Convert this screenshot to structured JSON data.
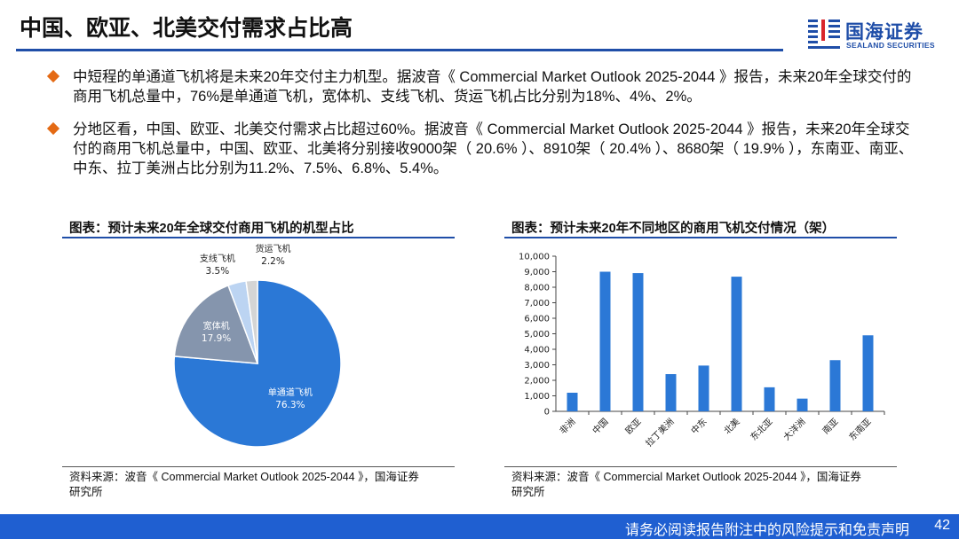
{
  "header": {
    "title": "中国、欧亚、北美交付需求占比高",
    "logo_cn": "国海证券",
    "logo_en": "SEALAND SECURITIES"
  },
  "bullets": [
    "中短程的单通道飞机将是未来20年交付主力机型。据波音《 Commercial Market Outlook 2025-2044 》报告，未来20年全球交付的商用飞机总量中，76%是单通道飞机，宽体机、支线飞机、货运飞机占比分别为18%、4%、2%。",
    "分地区看，中国、欧亚、北美交付需求占比超过60%。据波音《 Commercial Market Outlook 2025-2044 》报告，未来20年全球交付的商用飞机总量中，中国、欧亚、北美将分别接收9000架（ 20.6% ）、8910架（ 20.4% ）、8680架（ 19.9% ），东南亚、南亚、中东、拉丁美洲占比分别为11.2%、7.5%、6.8%、5.4%。"
  ],
  "left_panel": {
    "title": "图表：预计未来20年全球交付商用飞机的机型占比",
    "source_line1": "资料来源：波音《 Commercial Market Outlook 2025-2044 》，国海证券",
    "source_line2": "研究所"
  },
  "right_panel": {
    "title": "图表：预计未来20年不同地区的商用飞机交付情况（架）",
    "source_line1": "资料来源：波音《 Commercial Market Outlook 2025-2044 》，国海证券",
    "source_line2": "研究所"
  },
  "chart_data": [
    {
      "type": "pie",
      "title": "",
      "slices": [
        {
          "label": "单通道飞机",
          "value": 76.3,
          "display": "76.3%",
          "color": "#2b78d6"
        },
        {
          "label": "宽体机",
          "value": 17.9,
          "display": "17.9%",
          "color": "#8595ad"
        },
        {
          "label": "支线飞机",
          "value": 3.5,
          "display": "3.5%",
          "color": "#bcd4f2"
        },
        {
          "label": "货运飞机",
          "value": 2.2,
          "display": "2.2%",
          "color": "#d5d5d5"
        }
      ],
      "legend": "none"
    },
    {
      "type": "bar",
      "title": "",
      "categories": [
        "非洲",
        "中国",
        "欧亚",
        "拉丁美洲",
        "中东",
        "北美",
        "东北亚",
        "大洋洲",
        "南亚",
        "东南亚"
      ],
      "values": [
        1200,
        9000,
        8910,
        2400,
        2950,
        8680,
        1550,
        820,
        3300,
        4900
      ],
      "xlabel": "",
      "ylabel": "",
      "ylim": [
        0,
        10000
      ],
      "yticks": [
        "0",
        "1,000",
        "2,000",
        "3,000",
        "4,000",
        "5,000",
        "6,000",
        "7,000",
        "8,000",
        "9,000",
        "10,000"
      ],
      "bar_color": "#2b78d6",
      "grid": false
    }
  ],
  "footer": {
    "disclaimer": "请务必阅读报告附注中的风险提示和免责声明",
    "page": "42"
  }
}
